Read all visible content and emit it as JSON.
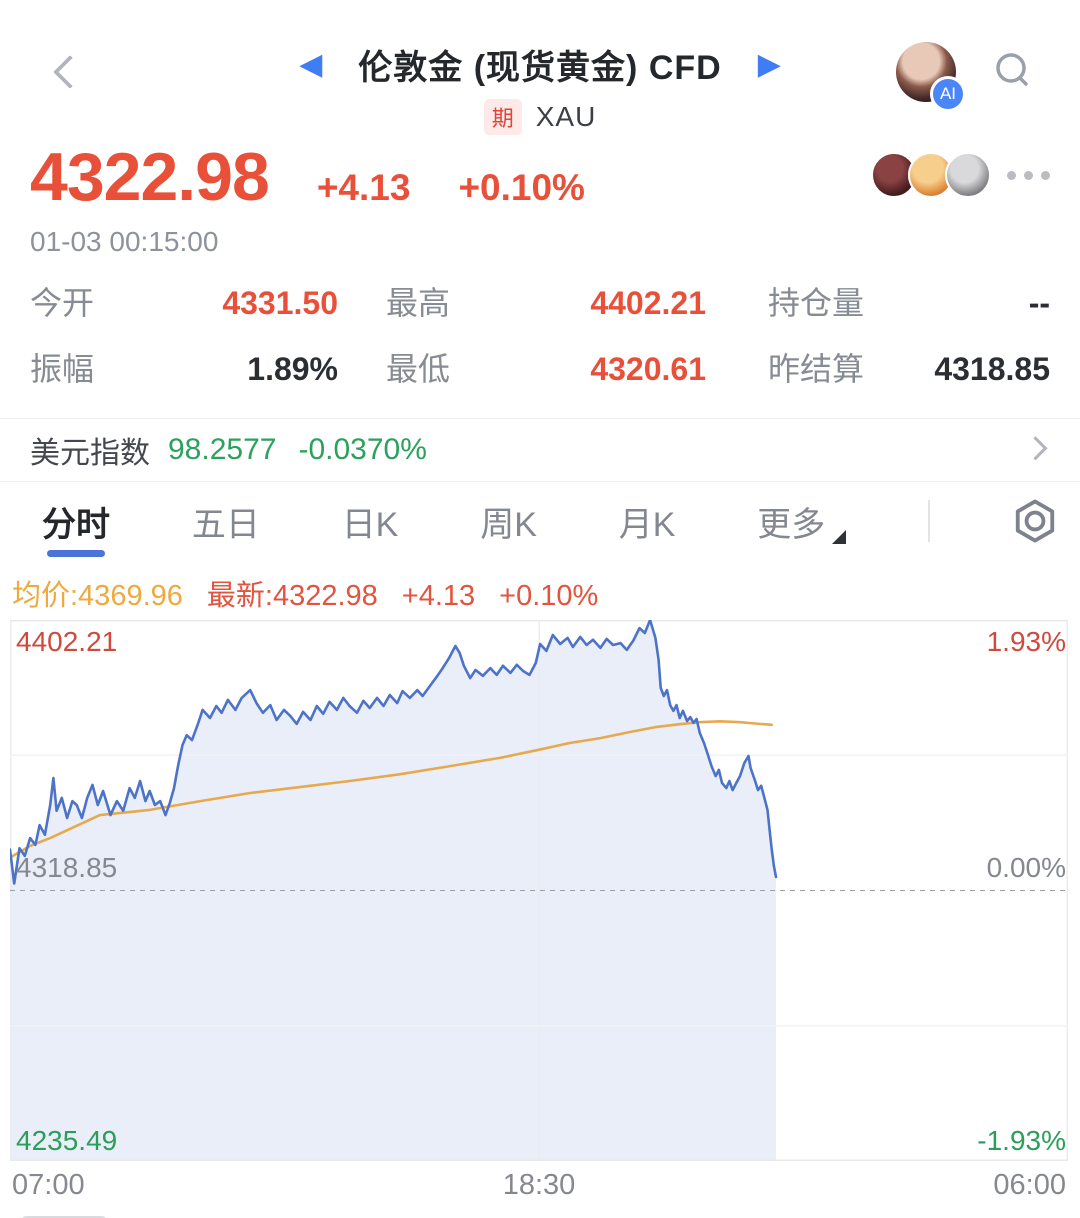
{
  "header": {
    "title": "伦敦金 (现货黄金) CFD",
    "badge": "期",
    "symbol": "XAU",
    "ai_badge": "AI",
    "prev_arrow": "◀",
    "next_arrow": "▶"
  },
  "quote": {
    "price": "4322.98",
    "change": "+4.13",
    "change_pct": "+0.10%",
    "timestamp": "01-03 00:15:00"
  },
  "stats": {
    "rows": [
      [
        {
          "label": "今开",
          "value": "4331.50"
        },
        {
          "label": "最高",
          "value": "4402.21"
        },
        {
          "label": "持仓量",
          "value": "--"
        }
      ],
      [
        {
          "label": "振幅",
          "value": "1.89%"
        },
        {
          "label": "最低",
          "value": "4320.61"
        },
        {
          "label": "昨结算",
          "value": "4318.85"
        }
      ]
    ]
  },
  "usd": {
    "label": "美元指数",
    "value": "98.2577",
    "change": "-0.0370%"
  },
  "tabs": {
    "items": [
      {
        "label": "分时"
      },
      {
        "label": "五日"
      },
      {
        "label": "日K"
      },
      {
        "label": "周K"
      },
      {
        "label": "月K"
      },
      {
        "label": "更多"
      }
    ],
    "active_index": 0
  },
  "legend": {
    "avg": "均价:4369.96",
    "last": "最新:4322.98",
    "chg": "+4.13",
    "pct": "+0.10%"
  },
  "chart_data": {
    "type": "line",
    "title": "分时 (intraday) price with average line",
    "x_ticks": [
      "07:00",
      "18:30",
      "06:00"
    ],
    "y_left_labels": {
      "top": "4402.21",
      "middle": "4318.85",
      "bottom": "4235.49"
    },
    "y_right_labels": {
      "top": "1.93%",
      "middle": "0.00%",
      "bottom": "-1.93%"
    },
    "ylim": [
      4235.49,
      4402.21
    ],
    "prev_close": 4318.85,
    "grid": {
      "vertical_center": true,
      "quarter_lines": true,
      "dashed_prev_close": true
    },
    "series": [
      {
        "name": "price",
        "color": "#4d73c9",
        "fill": "rgba(105,135,205,0.14)",
        "points": [
          [
            0.0,
            4331.5
          ],
          [
            0.004,
            4321.0
          ],
          [
            0.009,
            4331.9
          ],
          [
            0.014,
            4329.5
          ],
          [
            0.019,
            4335.0
          ],
          [
            0.024,
            4332.9
          ],
          [
            0.028,
            4339.0
          ],
          [
            0.033,
            4336.0
          ],
          [
            0.038,
            4345.2
          ],
          [
            0.041,
            4353.5
          ],
          [
            0.044,
            4343.4
          ],
          [
            0.049,
            4347.4
          ],
          [
            0.054,
            4341.2
          ],
          [
            0.059,
            4346.4
          ],
          [
            0.063,
            4345.2
          ],
          [
            0.068,
            4341.2
          ],
          [
            0.073,
            4347.4
          ],
          [
            0.078,
            4351.4
          ],
          [
            0.083,
            4345.2
          ],
          [
            0.088,
            4349.5
          ],
          [
            0.095,
            4342.1
          ],
          [
            0.101,
            4346.4
          ],
          [
            0.107,
            4343.4
          ],
          [
            0.113,
            4350.4
          ],
          [
            0.118,
            4347.4
          ],
          [
            0.123,
            4352.6
          ],
          [
            0.128,
            4346.4
          ],
          [
            0.132,
            4349.5
          ],
          [
            0.137,
            4345.2
          ],
          [
            0.142,
            4346.4
          ],
          [
            0.147,
            4342.1
          ],
          [
            0.151,
            4345.8
          ],
          [
            0.155,
            4350.4
          ],
          [
            0.159,
            4357.5
          ],
          [
            0.163,
            4363.7
          ],
          [
            0.167,
            4366.7
          ],
          [
            0.172,
            4365.2
          ],
          [
            0.178,
            4370.5
          ],
          [
            0.182,
            4374.5
          ],
          [
            0.189,
            4372.0
          ],
          [
            0.195,
            4375.7
          ],
          [
            0.2,
            4373.6
          ],
          [
            0.206,
            4377.6
          ],
          [
            0.213,
            4374.5
          ],
          [
            0.219,
            4378.2
          ],
          [
            0.227,
            4380.6
          ],
          [
            0.233,
            4376.6
          ],
          [
            0.239,
            4373.6
          ],
          [
            0.246,
            4376.0
          ],
          [
            0.252,
            4371.4
          ],
          [
            0.259,
            4374.5
          ],
          [
            0.265,
            4372.6
          ],
          [
            0.271,
            4370.2
          ],
          [
            0.277,
            4373.9
          ],
          [
            0.284,
            4371.4
          ],
          [
            0.29,
            4375.7
          ],
          [
            0.296,
            4373.3
          ],
          [
            0.302,
            4377.0
          ],
          [
            0.309,
            4374.5
          ],
          [
            0.315,
            4378.2
          ],
          [
            0.321,
            4375.7
          ],
          [
            0.328,
            4373.6
          ],
          [
            0.334,
            4377.3
          ],
          [
            0.34,
            4375.1
          ],
          [
            0.347,
            4378.2
          ],
          [
            0.353,
            4375.7
          ],
          [
            0.359,
            4379.1
          ],
          [
            0.366,
            4376.6
          ],
          [
            0.371,
            4380.3
          ],
          [
            0.378,
            4378.2
          ],
          [
            0.385,
            4380.6
          ],
          [
            0.39,
            4378.8
          ],
          [
            0.397,
            4381.9
          ],
          [
            0.404,
            4385.0
          ],
          [
            0.409,
            4387.4
          ],
          [
            0.415,
            4390.5
          ],
          [
            0.421,
            4394.2
          ],
          [
            0.425,
            4392.1
          ],
          [
            0.429,
            4388.1
          ],
          [
            0.435,
            4384.3
          ],
          [
            0.44,
            4386.8
          ],
          [
            0.447,
            4385.0
          ],
          [
            0.454,
            4387.4
          ],
          [
            0.46,
            4385.3
          ],
          [
            0.466,
            4388.1
          ],
          [
            0.473,
            4385.9
          ],
          [
            0.479,
            4388.4
          ],
          [
            0.485,
            4386.5
          ],
          [
            0.491,
            4385.3
          ],
          [
            0.497,
            4389.0
          ],
          [
            0.501,
            4394.8
          ],
          [
            0.507,
            4392.7
          ],
          [
            0.513,
            4397.6
          ],
          [
            0.52,
            4394.8
          ],
          [
            0.527,
            4396.7
          ],
          [
            0.532,
            4393.9
          ],
          [
            0.539,
            4397.0
          ],
          [
            0.545,
            4394.5
          ],
          [
            0.551,
            4396.1
          ],
          [
            0.558,
            4393.6
          ],
          [
            0.564,
            4396.4
          ],
          [
            0.57,
            4394.5
          ],
          [
            0.577,
            4395.1
          ],
          [
            0.583,
            4393.0
          ],
          [
            0.589,
            4395.8
          ],
          [
            0.595,
            4399.7
          ],
          [
            0.6,
            4398.2
          ],
          [
            0.605,
            4402.2
          ],
          [
            0.61,
            4396.7
          ],
          [
            0.613,
            4389.9
          ],
          [
            0.615,
            4381.3
          ],
          [
            0.618,
            4378.8
          ],
          [
            0.621,
            4380.6
          ],
          [
            0.624,
            4376.0
          ],
          [
            0.627,
            4374.2
          ],
          [
            0.63,
            4376.0
          ],
          [
            0.633,
            4372.0
          ],
          [
            0.636,
            4374.2
          ],
          [
            0.64,
            4371.1
          ],
          [
            0.643,
            4372.3
          ],
          [
            0.646,
            4370.5
          ],
          [
            0.649,
            4371.7
          ],
          [
            0.652,
            4367.4
          ],
          [
            0.656,
            4364.3
          ],
          [
            0.66,
            4360.3
          ],
          [
            0.663,
            4357.2
          ],
          [
            0.667,
            4354.1
          ],
          [
            0.67,
            4356.0
          ],
          [
            0.673,
            4352.0
          ],
          [
            0.677,
            4350.4
          ],
          [
            0.68,
            4352.6
          ],
          [
            0.683,
            4349.8
          ],
          [
            0.686,
            4351.7
          ],
          [
            0.69,
            4354.1
          ],
          [
            0.694,
            4358.1
          ],
          [
            0.698,
            4360.3
          ],
          [
            0.7,
            4356.6
          ],
          [
            0.704,
            4352.9
          ],
          [
            0.707,
            4349.8
          ],
          [
            0.71,
            4351.1
          ],
          [
            0.713,
            4347.4
          ],
          [
            0.716,
            4343.7
          ],
          [
            0.718,
            4337.5
          ],
          [
            0.72,
            4331.3
          ],
          [
            0.722,
            4326.4
          ],
          [
            0.724,
            4323.0
          ]
        ]
      },
      {
        "name": "average",
        "color": "#e7a94e",
        "points": [
          [
            0.0,
            4329.0
          ],
          [
            0.019,
            4332.6
          ],
          [
            0.038,
            4335.0
          ],
          [
            0.085,
            4342.1
          ],
          [
            0.132,
            4343.7
          ],
          [
            0.18,
            4346.4
          ],
          [
            0.227,
            4348.9
          ],
          [
            0.274,
            4350.7
          ],
          [
            0.321,
            4352.6
          ],
          [
            0.369,
            4354.7
          ],
          [
            0.416,
            4357.2
          ],
          [
            0.463,
            4359.7
          ],
          [
            0.498,
            4362.1
          ],
          [
            0.529,
            4364.3
          ],
          [
            0.558,
            4365.8
          ],
          [
            0.586,
            4367.7
          ],
          [
            0.61,
            4369.2
          ],
          [
            0.633,
            4370.1
          ],
          [
            0.652,
            4370.7
          ],
          [
            0.671,
            4371.0
          ],
          [
            0.69,
            4370.7
          ],
          [
            0.704,
            4370.3
          ],
          [
            0.72,
            4369.9
          ]
        ]
      }
    ]
  },
  "colors": {
    "up_red": "#e85039",
    "down_green": "#2aa15c",
    "price_line": "#4d73c9",
    "avg_line": "#e7a94e",
    "accent_blue": "#3f7df6",
    "tab_underline": "#4a74d9",
    "label_gray": "#868b94"
  }
}
